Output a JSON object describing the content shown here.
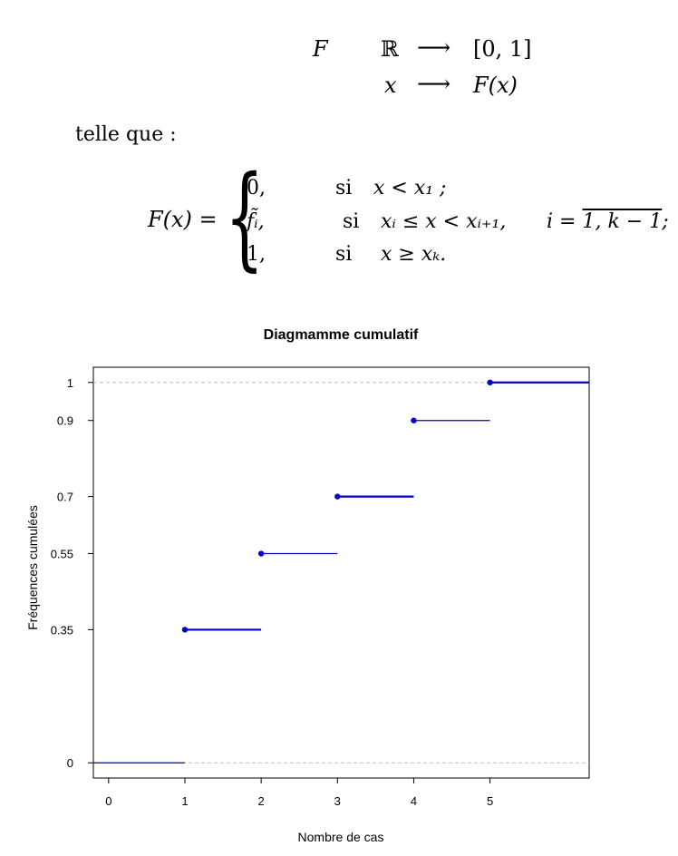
{
  "math": {
    "map_f": "F",
    "map_domain": "ℝ",
    "map_arrow": "⟶",
    "map_codomain": "[0, 1]",
    "map_x": "x",
    "map_fx": "F(x)",
    "telle_que": "telle que :",
    "lhs": "F(x) =",
    "cases": [
      {
        "value": "0,",
        "si": "si",
        "condition": "x < x₁ ;"
      },
      {
        "value": "f̃ᵢ,",
        "si": "si",
        "condition": "xᵢ ≤ x < xᵢ₊₁,",
        "index_prefix": "i = ",
        "index_range": "1, k − 1",
        "index_suffix": ";"
      },
      {
        "value": "1,",
        "si": "si",
        "condition": "x ≥ xₖ."
      }
    ]
  },
  "colors": {
    "step": "#0000cc",
    "dash": "#bdbdbd",
    "axis": "#000000"
  },
  "chart_data": {
    "type": "line",
    "title": "Diagmamme cumulatif",
    "xlabel": "Nombre de cas",
    "ylabel": "Fréquences cumulées",
    "xlim": [
      -0.2,
      6.3
    ],
    "ylim": [
      -0.04,
      1.04
    ],
    "x_ticks": [
      0,
      1,
      2,
      3,
      4,
      5
    ],
    "x_tick_labels": [
      "0",
      "1",
      "2",
      "3",
      "4",
      "5"
    ],
    "y_ticks": [
      0,
      0.35,
      0.55,
      0.7,
      0.9,
      1
    ],
    "y_tick_labels": [
      "0",
      "0.35",
      "0.55",
      "0.7",
      "0.9",
      "1"
    ],
    "dashed_lines": [
      0,
      1
    ],
    "steps": [
      {
        "x_start": -0.2,
        "x_end": 1,
        "y": 0,
        "point": false
      },
      {
        "x_start": 1,
        "x_end": 2,
        "y": 0.35,
        "point": true
      },
      {
        "x_start": 2,
        "x_end": 3,
        "y": 0.55,
        "point": true
      },
      {
        "x_start": 3,
        "x_end": 4,
        "y": 0.7,
        "point": true
      },
      {
        "x_start": 4,
        "x_end": 5,
        "y": 0.9,
        "point": true
      },
      {
        "x_start": 5,
        "x_end": 6.3,
        "y": 1,
        "point": true
      }
    ]
  }
}
